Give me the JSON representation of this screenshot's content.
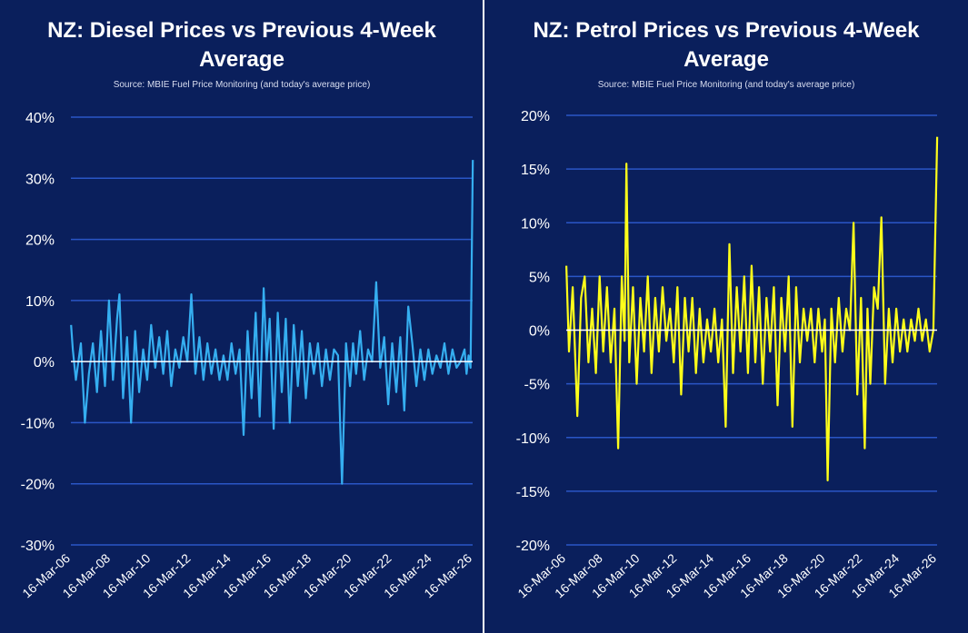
{
  "source_text": "Source: MBIE Fuel Price Monitoring (and today's average price)",
  "colors": {
    "background": "#0a1f5c",
    "grid": "#2a56c6",
    "zero_line": "#ffffff",
    "diesel": "#35aef0",
    "petrol": "#ffff1a"
  },
  "chart_data": [
    {
      "type": "line",
      "title": "NZ: Diesel Prices vs Previous 4-Week Average",
      "subtitle": "Source: MBIE Fuel Price Monitoring (and today's average price)",
      "xlabel": "",
      "ylabel": "",
      "ylim": [
        -0.3,
        0.4
      ],
      "y_ticks": [
        0.4,
        0.3,
        0.2,
        0.1,
        0,
        -0.1,
        -0.2,
        -0.3
      ],
      "y_tick_labels": [
        "40%",
        "30%",
        "20%",
        "10%",
        "0%",
        "-10%",
        "-20%",
        "-30%"
      ],
      "x_range": [
        "2006-03-16",
        "2026-03-16"
      ],
      "x_tick_labels": [
        "16-Mar-06",
        "16-Mar-08",
        "16-Mar-10",
        "16-Mar-12",
        "16-Mar-14",
        "16-Mar-16",
        "16-Mar-18",
        "16-Mar-20",
        "16-Mar-22",
        "16-Mar-24",
        "16-Mar-26"
      ],
      "grid": true,
      "series": [
        {
          "color": "#35aef0",
          "x": [
            2006.21,
            2006.3,
            2006.45,
            2006.7,
            2006.9,
            2007.1,
            2007.3,
            2007.5,
            2007.7,
            2007.9,
            2008.1,
            2008.3,
            2008.5,
            2008.62,
            2008.8,
            2009.0,
            2009.2,
            2009.4,
            2009.6,
            2009.8,
            2010.0,
            2010.2,
            2010.4,
            2010.6,
            2010.8,
            2011.0,
            2011.2,
            2011.4,
            2011.6,
            2011.8,
            2012.0,
            2012.2,
            2012.4,
            2012.6,
            2012.8,
            2013.0,
            2013.2,
            2013.4,
            2013.6,
            2013.8,
            2014.0,
            2014.2,
            2014.4,
            2014.6,
            2014.8,
            2015.0,
            2015.2,
            2015.4,
            2015.6,
            2015.8,
            2015.95,
            2016.1,
            2016.3,
            2016.5,
            2016.7,
            2016.9,
            2017.1,
            2017.3,
            2017.5,
            2017.7,
            2017.9,
            2018.1,
            2018.3,
            2018.5,
            2018.7,
            2018.9,
            2019.1,
            2019.3,
            2019.5,
            2019.7,
            2019.9,
            2020.1,
            2020.25,
            2020.4,
            2020.6,
            2020.8,
            2021.0,
            2021.2,
            2021.4,
            2021.6,
            2021.8,
            2022.0,
            2022.2,
            2022.4,
            2022.6,
            2022.8,
            2023.0,
            2023.2,
            2023.4,
            2023.6,
            2023.8,
            2024.0,
            2024.2,
            2024.4,
            2024.6,
            2024.8,
            2025.0,
            2025.2,
            2025.4,
            2025.6,
            2025.8,
            2025.9,
            2026.0,
            2026.1,
            2026.21
          ],
          "y": [
            0.06,
            0.02,
            -0.03,
            0.03,
            -0.1,
            -0.02,
            0.03,
            -0.05,
            0.05,
            -0.04,
            0.1,
            -0.03,
            0.07,
            0.11,
            -0.06,
            0.04,
            -0.1,
            0.05,
            -0.05,
            0.02,
            -0.03,
            0.06,
            -0.01,
            0.04,
            -0.02,
            0.05,
            -0.04,
            0.02,
            -0.01,
            0.04,
            0.0,
            0.11,
            -0.02,
            0.04,
            -0.03,
            0.03,
            -0.02,
            0.02,
            -0.03,
            0.01,
            -0.03,
            0.03,
            -0.02,
            0.02,
            -0.12,
            0.05,
            -0.06,
            0.08,
            -0.09,
            0.12,
            0.0,
            0.07,
            -0.11,
            0.08,
            -0.05,
            0.07,
            -0.1,
            0.06,
            -0.04,
            0.05,
            -0.06,
            0.03,
            -0.02,
            0.03,
            -0.04,
            0.02,
            -0.03,
            0.02,
            0.01,
            -0.2,
            0.03,
            -0.04,
            0.03,
            -0.02,
            0.05,
            -0.03,
            0.02,
            0.0,
            0.13,
            -0.01,
            0.04,
            -0.07,
            0.03,
            -0.05,
            0.04,
            -0.08,
            0.09,
            0.03,
            -0.04,
            0.02,
            -0.03,
            0.02,
            -0.02,
            0.01,
            -0.01,
            0.03,
            -0.02,
            0.02,
            -0.01,
            0.0,
            0.02,
            -0.02,
            0.01,
            -0.01,
            0.33
          ]
        }
      ]
    },
    {
      "type": "line",
      "title": "NZ: Petrol Prices vs Previous 4-Week Average",
      "subtitle": "Source: MBIE Fuel Price Monitoring (and today's average price)",
      "xlabel": "",
      "ylabel": "",
      "ylim": [
        -0.2,
        0.2
      ],
      "y_ticks": [
        0.2,
        0.15,
        0.1,
        0.05,
        0,
        -0.05,
        -0.1,
        -0.15,
        -0.2
      ],
      "y_tick_labels": [
        "20%",
        "15%",
        "10%",
        "5%",
        "0%",
        "-5%",
        "-10%",
        "-15%",
        "-20%"
      ],
      "x_range": [
        "2006-03-16",
        "2026-03-16"
      ],
      "x_tick_labels": [
        "16-Mar-06",
        "16-Mar-08",
        "16-Mar-10",
        "16-Mar-12",
        "16-Mar-14",
        "16-Mar-16",
        "16-Mar-18",
        "16-Mar-20",
        "16-Mar-22",
        "16-Mar-24",
        "16-Mar-26"
      ],
      "grid": true,
      "series": [
        {
          "color": "#ffff1a",
          "x": [
            2006.21,
            2006.35,
            2006.55,
            2006.8,
            2007.0,
            2007.2,
            2007.4,
            2007.6,
            2007.8,
            2008.0,
            2008.2,
            2008.4,
            2008.6,
            2008.8,
            2009.0,
            2009.2,
            2009.35,
            2009.45,
            2009.6,
            2009.8,
            2010.0,
            2010.2,
            2010.4,
            2010.6,
            2010.8,
            2011.0,
            2011.2,
            2011.4,
            2011.6,
            2011.8,
            2012.0,
            2012.2,
            2012.4,
            2012.6,
            2012.8,
            2013.0,
            2013.2,
            2013.4,
            2013.6,
            2013.8,
            2014.0,
            2014.2,
            2014.4,
            2014.6,
            2014.8,
            2015.0,
            2015.2,
            2015.4,
            2015.6,
            2015.8,
            2016.0,
            2016.2,
            2016.4,
            2016.6,
            2016.8,
            2017.0,
            2017.2,
            2017.4,
            2017.6,
            2017.8,
            2018.0,
            2018.2,
            2018.4,
            2018.6,
            2018.8,
            2019.0,
            2019.2,
            2019.4,
            2019.6,
            2019.8,
            2020.0,
            2020.15,
            2020.3,
            2020.5,
            2020.7,
            2020.9,
            2021.1,
            2021.3,
            2021.5,
            2021.7,
            2021.9,
            2022.1,
            2022.3,
            2022.45,
            2022.6,
            2022.8,
            2023.0,
            2023.2,
            2023.4,
            2023.6,
            2023.8,
            2024.0,
            2024.2,
            2024.4,
            2024.6,
            2024.8,
            2025.0,
            2025.2,
            2025.4,
            2025.6,
            2025.8,
            2026.0,
            2026.21
          ],
          "y": [
            0.06,
            -0.02,
            0.04,
            -0.08,
            0.03,
            0.05,
            -0.03,
            0.02,
            -0.04,
            0.05,
            -0.02,
            0.04,
            -0.03,
            0.02,
            -0.11,
            0.05,
            -0.01,
            0.155,
            -0.03,
            0.04,
            -0.05,
            0.03,
            -0.02,
            0.05,
            -0.04,
            0.03,
            -0.02,
            0.04,
            -0.01,
            0.02,
            -0.03,
            0.04,
            -0.06,
            0.03,
            -0.02,
            0.03,
            -0.04,
            0.02,
            -0.03,
            0.01,
            -0.02,
            0.02,
            -0.03,
            0.01,
            -0.09,
            0.08,
            -0.04,
            0.04,
            -0.02,
            0.05,
            -0.04,
            0.06,
            -0.03,
            0.04,
            -0.05,
            0.03,
            -0.02,
            0.04,
            -0.07,
            0.03,
            -0.02,
            0.05,
            -0.09,
            0.04,
            -0.03,
            0.02,
            -0.01,
            0.02,
            -0.03,
            0.02,
            -0.02,
            0.01,
            -0.14,
            0.02,
            -0.03,
            0.03,
            -0.02,
            0.02,
            0.0,
            0.1,
            -0.06,
            0.03,
            -0.11,
            0.02,
            -0.05,
            0.04,
            0.02,
            0.105,
            -0.05,
            0.02,
            -0.03,
            0.02,
            -0.02,
            0.01,
            -0.02,
            0.01,
            -0.01,
            0.02,
            -0.01,
            0.01,
            -0.02,
            0.0,
            0.18
          ]
        }
      ]
    }
  ]
}
